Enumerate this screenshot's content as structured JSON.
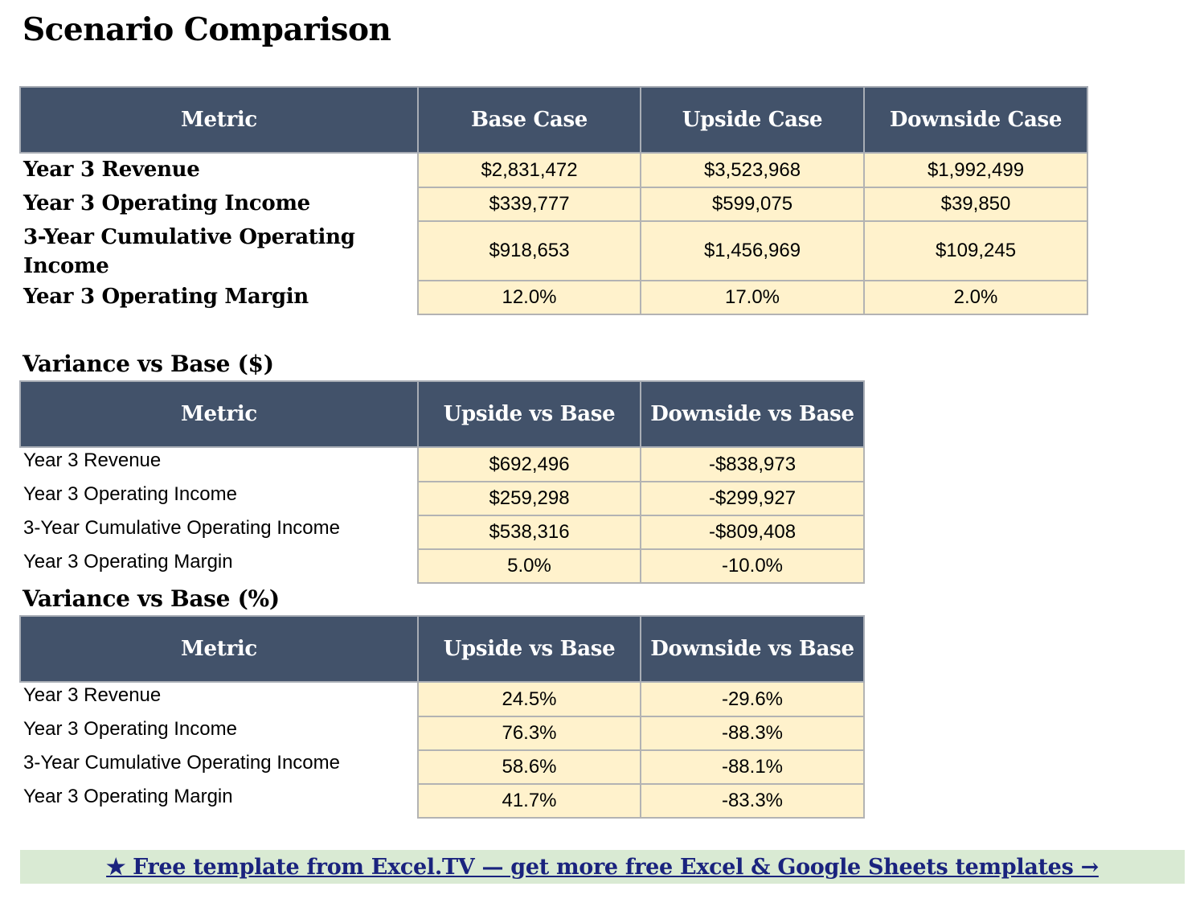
{
  "title": "Scenario Comparison",
  "comparison": {
    "headers": [
      "Metric",
      "Base Case",
      "Upside Case",
      "Downside Case"
    ],
    "rows": [
      {
        "metric": "Year 3 Revenue",
        "values": [
          "$2,831,472",
          "$3,523,968",
          "$1,992,499"
        ]
      },
      {
        "metric": "Year 3 Operating Income",
        "values": [
          "$339,777",
          "$599,075",
          "$39,850"
        ]
      },
      {
        "metric": "3-Year Cumulative Operating Income",
        "values": [
          "$918,653",
          "$1,456,969",
          "$109,245"
        ]
      },
      {
        "metric": "Year 3 Operating Margin",
        "values": [
          "12.0%",
          "17.0%",
          "2.0%"
        ]
      }
    ]
  },
  "variance_dollar": {
    "title": "Variance vs Base ($)",
    "headers": [
      "Metric",
      "Upside vs Base",
      "Downside vs Base"
    ],
    "rows": [
      {
        "metric": "Year 3 Revenue",
        "values": [
          "$692,496",
          "-$838,973"
        ]
      },
      {
        "metric": "Year 3 Operating Income",
        "values": [
          "$259,298",
          "-$299,927"
        ]
      },
      {
        "metric": "3-Year Cumulative Operating Income",
        "values": [
          "$538,316",
          "-$809,408"
        ]
      },
      {
        "metric": "Year 3 Operating Margin",
        "values": [
          "5.0%",
          "-10.0%"
        ]
      }
    ]
  },
  "variance_percent": {
    "title": "Variance vs Base (%)",
    "headers": [
      "Metric",
      "Upside vs Base",
      "Downside vs Base"
    ],
    "rows": [
      {
        "metric": "Year 3 Revenue",
        "values": [
          "24.5%",
          "-29.6%"
        ]
      },
      {
        "metric": "Year 3 Operating Income",
        "values": [
          "76.3%",
          "-88.3%"
        ]
      },
      {
        "metric": "3-Year Cumulative Operating Income",
        "values": [
          "58.6%",
          "-88.1%"
        ]
      },
      {
        "metric": "Year 3 Operating Margin",
        "values": [
          "41.7%",
          "-83.3%"
        ]
      }
    ]
  },
  "footer": {
    "link_text": "★ Free template from Excel.TV — get more free Excel & Google Sheets templates →"
  }
}
